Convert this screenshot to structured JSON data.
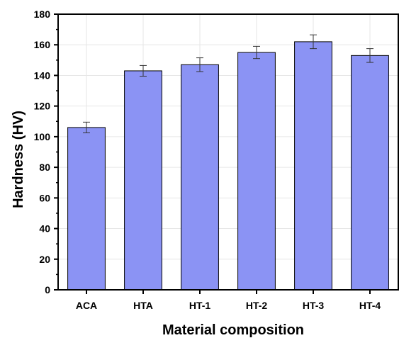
{
  "chart_data": {
    "type": "bar",
    "title": "",
    "xlabel": "Material composition",
    "ylabel": "Hardness (HV)",
    "categories": [
      "ACA",
      "HTA",
      "HT-1",
      "HT-2",
      "HT-3",
      "HT-4"
    ],
    "values": [
      106,
      143,
      147,
      155,
      162,
      153
    ],
    "errors": [
      3.5,
      3.5,
      4.5,
      4,
      4.5,
      4.5
    ],
    "ylim": [
      0,
      180
    ],
    "yticks": [
      "0",
      "20",
      "40",
      "60",
      "80",
      "100",
      "120",
      "140",
      "160",
      "180"
    ],
    "grid": true,
    "bar_color": "#8b93f4",
    "bar_edge_color": "#000000"
  }
}
